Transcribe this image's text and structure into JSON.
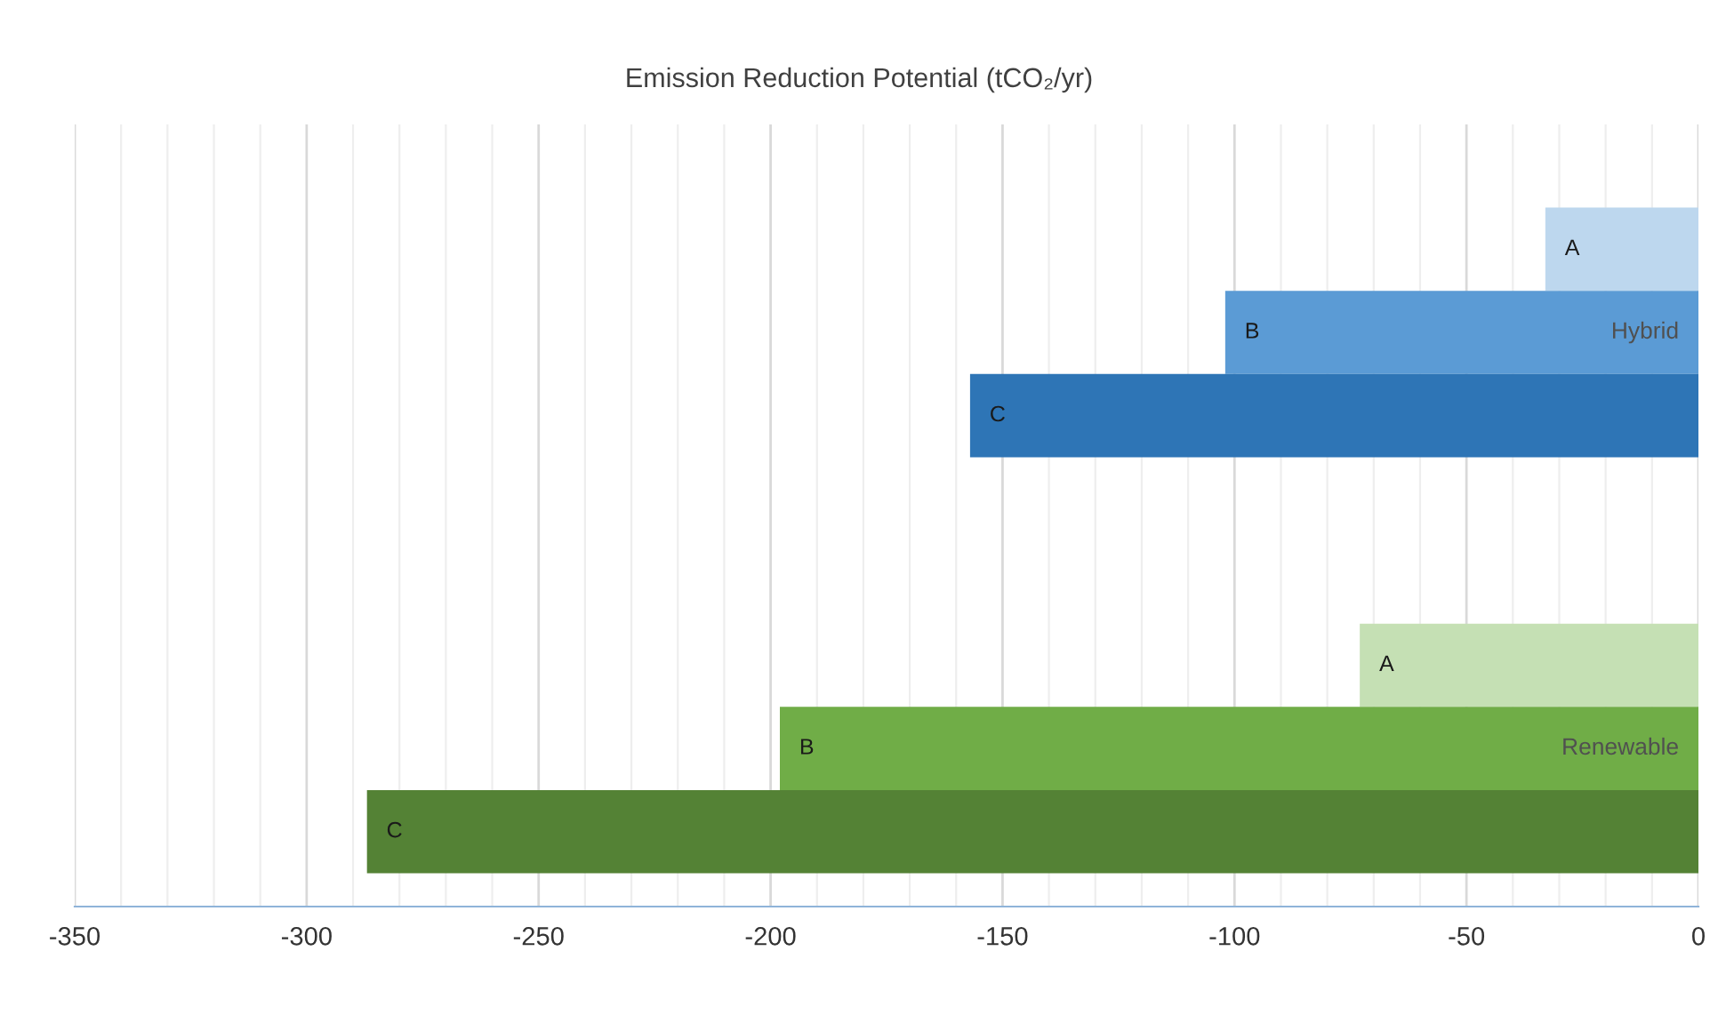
{
  "chart_data": {
    "type": "bar",
    "orientation": "horizontal",
    "title": "Emission Reduction Potential (tCO₂/yr)",
    "categories": [
      "Hybrid",
      "Renewable"
    ],
    "series": [
      {
        "name": "A",
        "colors": [
          "#bdd7ee",
          "#c5e0b4"
        ],
        "values": [
          -33,
          -73
        ]
      },
      {
        "name": "B",
        "colors": [
          "#5b9bd5",
          "#70ad47"
        ],
        "values": [
          -102,
          -198
        ]
      },
      {
        "name": "C",
        "colors": [
          "#2e75b6",
          "#548235"
        ],
        "values": [
          -157,
          -287
        ]
      }
    ],
    "xlim": [
      -350,
      0
    ],
    "xticks": [
      -350,
      {
        "value": -340,
        "label": null
      },
      {
        "value": -330,
        "label": null
      },
      {
        "value": -320,
        "label": null
      },
      {
        "value": -310,
        "label": null
      },
      -300,
      {
        "value": -290,
        "label": null
      },
      {
        "value": -280,
        "label": null
      },
      {
        "value": -270,
        "label": null
      },
      {
        "value": -260,
        "label": null
      },
      -250,
      {
        "value": -240,
        "label": null
      },
      {
        "value": -230,
        "label": null
      },
      {
        "value": -220,
        "label": null
      },
      {
        "value": -210,
        "label": null
      },
      -200,
      {
        "value": -190,
        "label": null
      },
      {
        "value": -180,
        "label": null
      },
      {
        "value": -170,
        "label": null
      },
      {
        "value": -160,
        "label": null
      },
      -150,
      {
        "value": -140,
        "label": null
      },
      {
        "value": -130,
        "label": null
      },
      {
        "value": -120,
        "label": null
      },
      {
        "value": -110,
        "label": null
      },
      -100,
      {
        "value": -90,
        "label": null
      },
      {
        "value": -80,
        "label": null
      },
      {
        "value": -70,
        "label": null
      },
      {
        "value": -60,
        "label": null
      },
      -50,
      {
        "value": -40,
        "label": null
      },
      {
        "value": -30,
        "label": null
      },
      {
        "value": -20,
        "label": null
      },
      {
        "value": -10,
        "label": null
      },
      0
    ],
    "grid": "x",
    "legend": false,
    "tick_labels": "x"
  }
}
